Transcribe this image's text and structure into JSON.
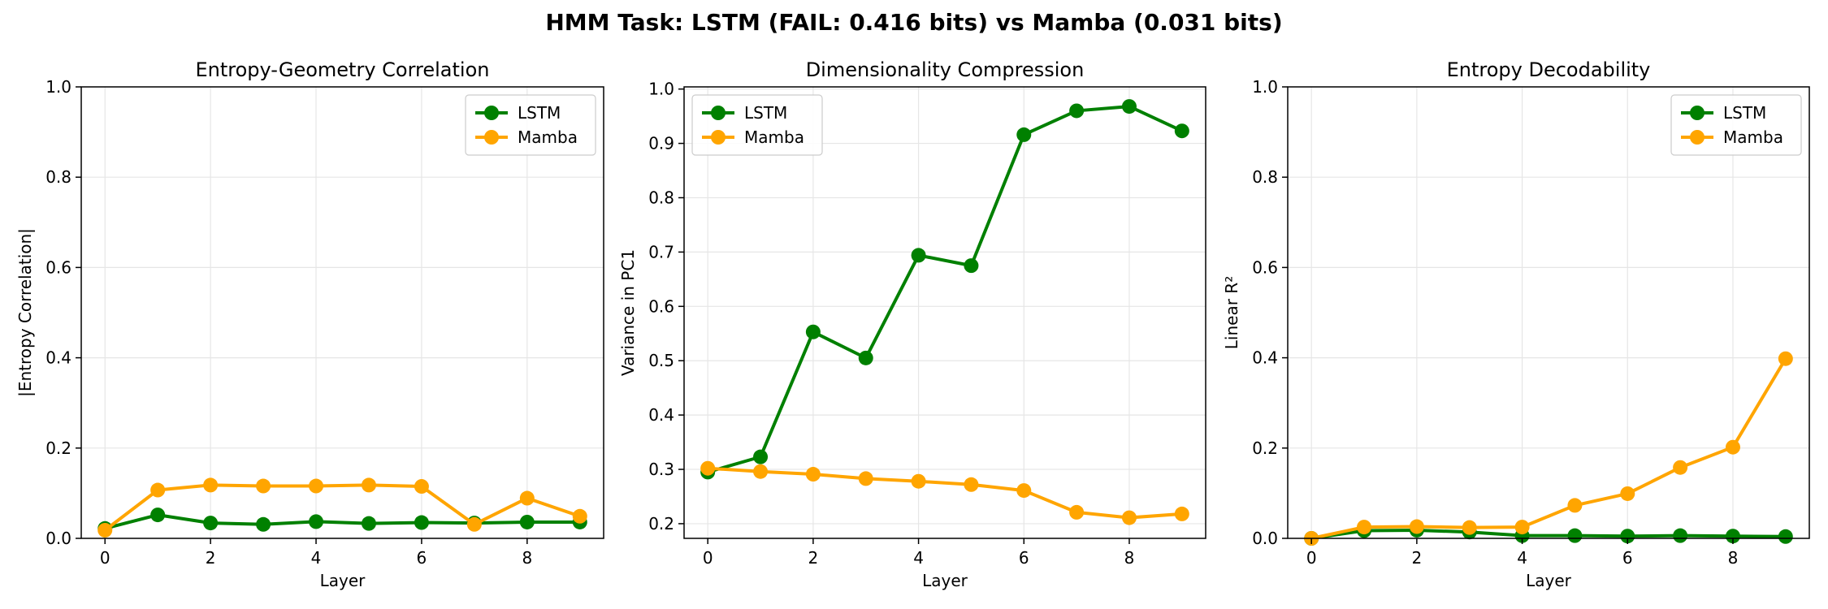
{
  "figure_title": "HMM Task: LSTM (FAIL: 0.416 bits) vs Mamba (0.031 bits)",
  "colors": {
    "LSTM": "#008000",
    "Mamba": "#FFA500",
    "grid": "#e6e6e6",
    "axis": "#000000"
  },
  "chart_data": [
    {
      "type": "line",
      "title": "Entropy-Geometry Correlation",
      "xlabel": "Layer",
      "ylabel": "|Entropy Correlation|",
      "xlim": [
        -0.45,
        9.45
      ],
      "ylim": [
        0.0,
        1.0
      ],
      "xticks": [
        0,
        2,
        4,
        6,
        8
      ],
      "yticks": [
        0.0,
        0.2,
        0.4,
        0.6,
        0.8,
        1.0
      ],
      "ytick_format": 1,
      "legend_loc": "upper right",
      "x": [
        0,
        1,
        2,
        3,
        4,
        5,
        6,
        7,
        8,
        9
      ],
      "series": [
        {
          "name": "LSTM",
          "values": [
            0.022,
            0.052,
            0.034,
            0.031,
            0.037,
            0.033,
            0.035,
            0.034,
            0.036,
            0.036
          ]
        },
        {
          "name": "Mamba",
          "values": [
            0.018,
            0.107,
            0.118,
            0.116,
            0.116,
            0.118,
            0.115,
            0.031,
            0.089,
            0.049
          ]
        }
      ]
    },
    {
      "type": "line",
      "title": "Dimensionality Compression",
      "xlabel": "Layer",
      "ylabel": "Variance in PC1",
      "xlim": [
        -0.45,
        9.45
      ],
      "ylim": [
        0.173,
        1.004
      ],
      "xticks": [
        0,
        2,
        4,
        6,
        8
      ],
      "yticks": [
        0.2,
        0.3,
        0.4,
        0.5,
        0.6,
        0.7,
        0.8,
        0.9,
        1.0
      ],
      "ytick_format": 1,
      "legend_loc": "upper left",
      "x": [
        0,
        1,
        2,
        3,
        4,
        5,
        6,
        7,
        8,
        9
      ],
      "series": [
        {
          "name": "LSTM",
          "values": [
            0.295,
            0.323,
            0.553,
            0.505,
            0.694,
            0.675,
            0.916,
            0.96,
            0.968,
            0.923
          ]
        },
        {
          "name": "Mamba",
          "values": [
            0.302,
            0.296,
            0.291,
            0.283,
            0.278,
            0.272,
            0.261,
            0.221,
            0.211,
            0.218
          ]
        }
      ]
    },
    {
      "type": "line",
      "title": "Entropy Decodability",
      "xlabel": "Layer",
      "ylabel": "Linear R²",
      "xlim": [
        -0.45,
        9.45
      ],
      "ylim": [
        0.0,
        1.0
      ],
      "xticks": [
        0,
        2,
        4,
        6,
        8
      ],
      "yticks": [
        0.0,
        0.2,
        0.4,
        0.6,
        0.8,
        1.0
      ],
      "ytick_format": 1,
      "legend_loc": "upper right",
      "x": [
        0,
        1,
        2,
        3,
        4,
        5,
        6,
        7,
        8,
        9
      ],
      "series": [
        {
          "name": "LSTM",
          "values": [
            0.0,
            0.017,
            0.018,
            0.014,
            0.006,
            0.006,
            0.005,
            0.006,
            0.005,
            0.004
          ]
        },
        {
          "name": "Mamba",
          "values": [
            0.0,
            0.025,
            0.026,
            0.024,
            0.025,
            0.073,
            0.099,
            0.157,
            0.202,
            0.398
          ]
        }
      ]
    }
  ]
}
